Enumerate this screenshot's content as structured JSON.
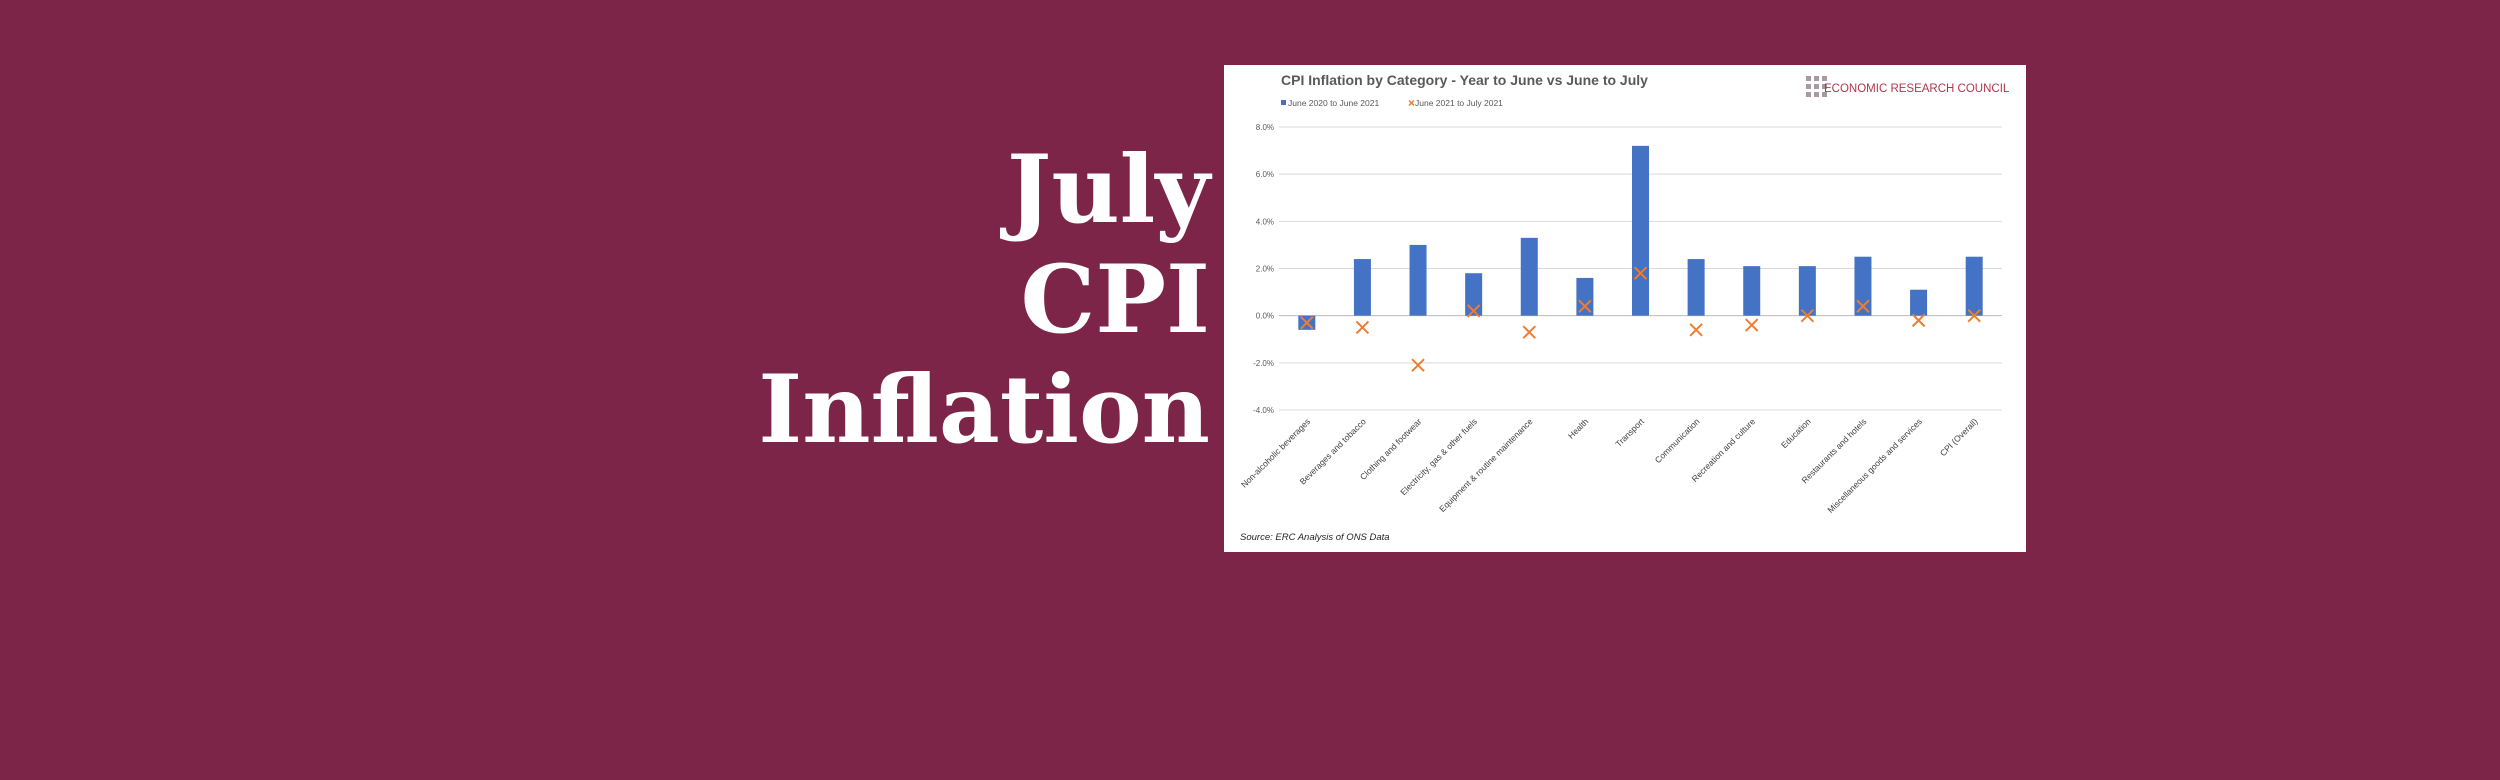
{
  "headline": {
    "line1": "July",
    "line2": "CPI",
    "line3": "Inflation"
  },
  "brand": {
    "name": "ECONOMIC RESEARCH COUNCIL",
    "color": "#b2354f"
  },
  "colors": {
    "background": "#7d2549",
    "bar": "#4472c4",
    "marker": "#ed7d31"
  },
  "chart_data": {
    "type": "bar",
    "title": "CPI Inflation by Category - Year to June vs June to July",
    "source": "Source: ERC Analysis of ONS Data",
    "categories": [
      "Non-alcoholic beverages",
      "Beverages and tobacco",
      "Clothing and footwear",
      "Electricity, gas & other fuels",
      "Equipment & routine maintenance",
      "Health",
      "Transport",
      "Communication",
      "Recreation and culture",
      "Education",
      "Restaurants and hotels",
      "Miscellaneous goods and services",
      "CPI (Overall)"
    ],
    "series": [
      {
        "name": "June 2020 to June 2021",
        "kind": "bar",
        "values": [
          -0.6,
          2.4,
          3.0,
          1.8,
          3.3,
          1.6,
          7.2,
          2.4,
          2.1,
          2.1,
          2.5,
          1.1,
          2.5
        ]
      },
      {
        "name": "June 2021 to July 2021",
        "kind": "marker",
        "values": [
          -0.3,
          -0.5,
          -2.1,
          0.2,
          -0.7,
          0.4,
          1.8,
          -0.6,
          -0.4,
          0.0,
          0.4,
          -0.2,
          0.0
        ]
      }
    ],
    "yticks": [
      "8.0%",
      "6.0%",
      "4.0%",
      "2.0%",
      "0.0%",
      "-2.0%",
      "-4.0%"
    ],
    "ylim": [
      -4,
      8
    ],
    "grid": true,
    "legend": "top-left"
  }
}
